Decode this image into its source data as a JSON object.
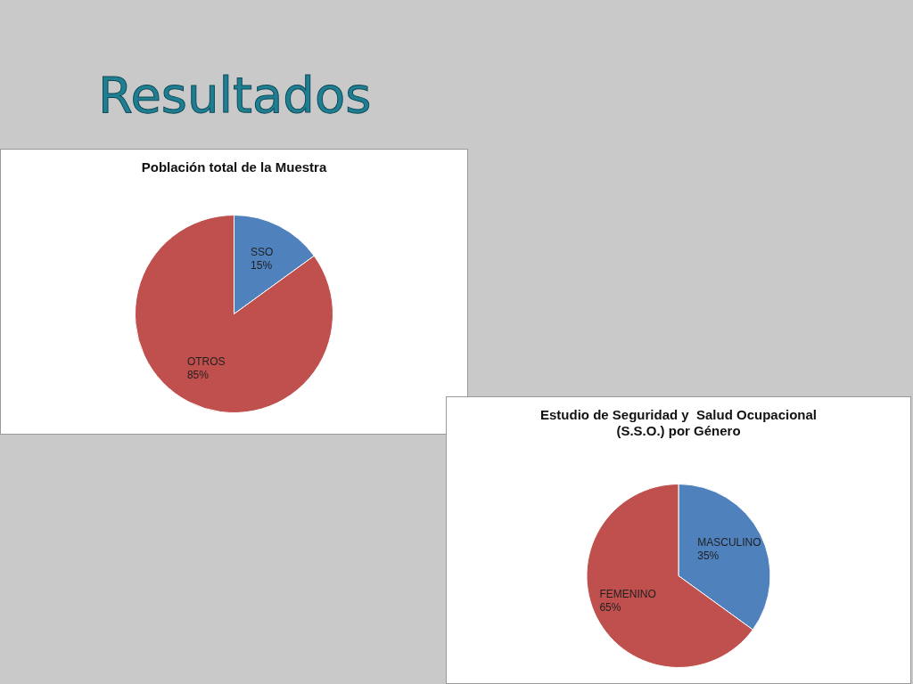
{
  "chart_data": [
    {
      "type": "other",
      "title": "Resultados"
    },
    {
      "type": "pie",
      "title": "Población total de la Muestra",
      "categories": [
        "SSO",
        "OTROS"
      ],
      "values": [
        15,
        85
      ],
      "colors": [
        "#4f81bd",
        "#c0504d"
      ],
      "value_labels": [
        "15%",
        "85%"
      ],
      "legend": false
    },
    {
      "type": "pie",
      "title": "Estudio de Seguridad y  Salud Ocupacional\n(S.S.O.) por Género",
      "categories": [
        "MASCULINO",
        "FEMENINO"
      ],
      "values": [
        35,
        65
      ],
      "colors": [
        "#4f81bd",
        "#c0504d"
      ],
      "value_labels": [
        "35%",
        "65%"
      ],
      "legend": false
    }
  ]
}
